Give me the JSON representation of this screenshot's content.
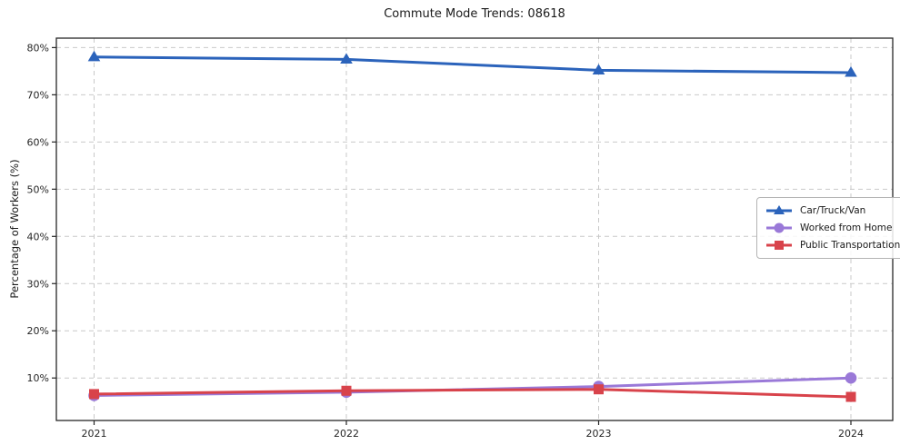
{
  "chart_data": {
    "type": "line",
    "title": "Commute Mode Trends: 08618",
    "xlabel": "",
    "ylabel": "Percentage of Workers (%)",
    "categories": [
      "2021",
      "2022",
      "2023",
      "2024"
    ],
    "series": [
      {
        "name": "Car/Truck/Van",
        "values": [
          78.0,
          77.5,
          75.2,
          74.7
        ],
        "color": "#2b63bb",
        "marker": "triangle"
      },
      {
        "name": "Worked from Home",
        "values": [
          6.3,
          7.0,
          8.2,
          10.0
        ],
        "color": "#9a79d8",
        "marker": "circle"
      },
      {
        "name": "Public Transportation",
        "values": [
          6.6,
          7.3,
          7.6,
          6.0
        ],
        "color": "#d8434b",
        "marker": "square"
      }
    ],
    "y_ticks": [
      10,
      20,
      30,
      40,
      50,
      60,
      70,
      80
    ],
    "y_tick_labels": [
      "10%",
      "20%",
      "30%",
      "40%",
      "50%",
      "60%",
      "70%",
      "80%"
    ],
    "ylim": [
      1,
      82
    ],
    "grid": true,
    "grid_style": "dashed",
    "legend_position": "center right",
    "colors": {
      "grid": "#c9c9c9",
      "spine": "#262626",
      "tick_label": "#262626",
      "background": "#ffffff"
    }
  }
}
